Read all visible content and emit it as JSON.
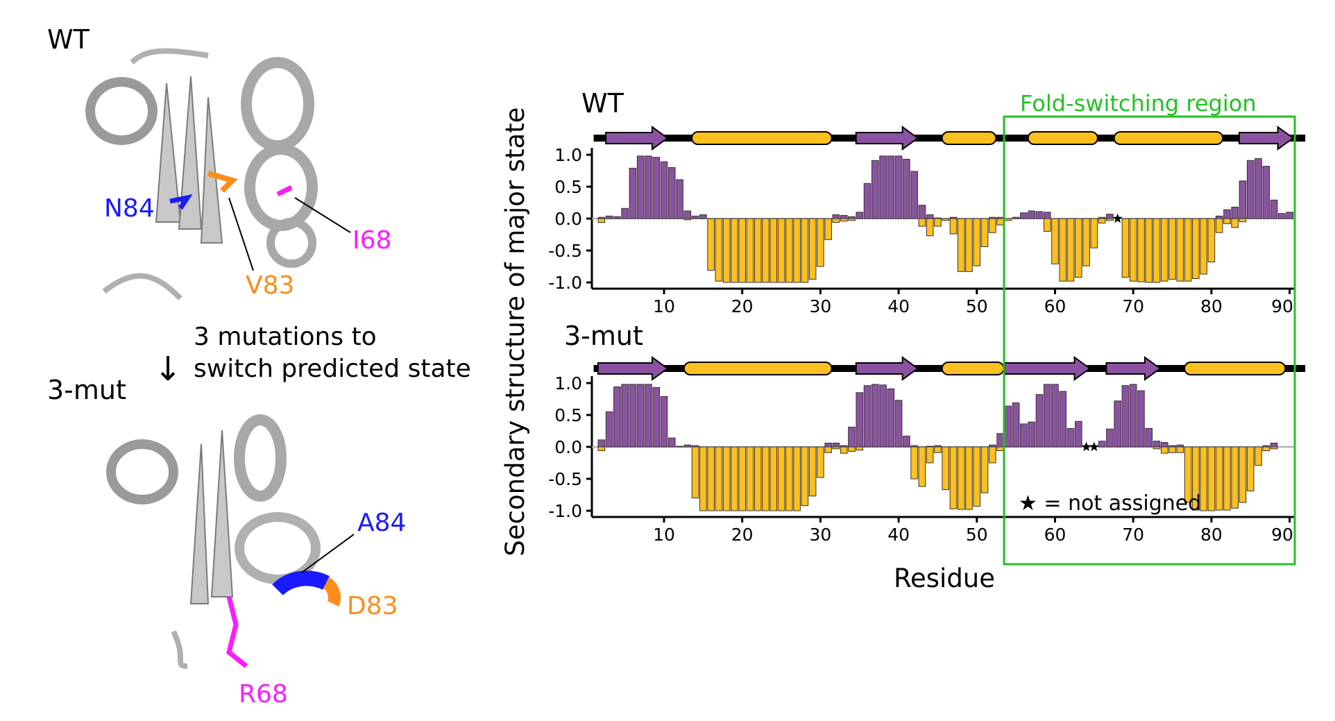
{
  "left": {
    "wt_label": "WT",
    "mut_label": "3-mut",
    "arrow_text_line1": "3 mutations to",
    "arrow_text_line2": "switch predicted state",
    "wt_residues": [
      {
        "label": "N84",
        "color": "#1a1aff"
      },
      {
        "label": "V83",
        "color": "#ff8c1a"
      },
      {
        "label": "I68",
        "color": "#ff1aff"
      }
    ],
    "mut_residues": [
      {
        "label": "A84",
        "color": "#1a1aff"
      },
      {
        "label": "D83",
        "color": "#ff8c1a"
      },
      {
        "label": "R68",
        "color": "#ff1aff"
      }
    ]
  },
  "chart_data": {
    "type": "bar",
    "ylabel": "Secondary structure of major state",
    "xlabel": "Residue",
    "xticks": [
      10,
      20,
      30,
      40,
      50,
      60,
      70,
      80,
      90
    ],
    "yticks": [
      "1.0",
      "0.5",
      "0.0",
      "-0.5",
      "-1.0"
    ],
    "ylim": [
      -1.0,
      1.0
    ],
    "xlim": [
      1,
      92
    ],
    "colors": {
      "strand": "#8B52A1",
      "helix": "#FDC01F",
      "region_box": "#22c222"
    },
    "region": {
      "label": "Fold-switching region",
      "start": 54,
      "end": 92
    },
    "note": "★ = not assigned",
    "panels": [
      {
        "title": "WT",
        "start_residue": 2,
        "strand": [
          0.02,
          0.04,
          0.03,
          0.16,
          0.79,
          0.98,
          0.98,
          0.96,
          0.89,
          0.8,
          0.61,
          0.12,
          0.04,
          0.06,
          0,
          0,
          0,
          0,
          0,
          0,
          0,
          0,
          0,
          0,
          0,
          0,
          0,
          0,
          0,
          0,
          0.06,
          0.05,
          0.03,
          0.1,
          0.55,
          0.91,
          0.98,
          0.98,
          0.98,
          0.93,
          0.74,
          0.21,
          0.06,
          0.01,
          0,
          0.02,
          0,
          0,
          0,
          0,
          0.02,
          0.02,
          0,
          0.02,
          0.09,
          0.12,
          0.11,
          0.1,
          0,
          0,
          0,
          0,
          0,
          0,
          0.02,
          0.07,
          null,
          0,
          0,
          0,
          0,
          0,
          0,
          0,
          0,
          0,
          0,
          0,
          0,
          0.04,
          0.14,
          0.18,
          0.59,
          0.91,
          0.94,
          0.82,
          0.29,
          0.08,
          0.1
        ],
        "helix": [
          -0.06,
          0,
          0,
          0,
          0,
          0,
          0,
          0,
          0,
          0,
          0,
          -0.02,
          0,
          0,
          -0.81,
          -0.98,
          -1,
          -1,
          -1,
          -1,
          -1,
          -1,
          -1,
          -1,
          -1,
          -1,
          -1,
          -0.95,
          -0.75,
          -0.33,
          -0.06,
          -0.04,
          -0.03,
          0,
          0,
          0,
          0,
          0,
          0,
          0,
          0,
          -0.12,
          -0.27,
          -0.12,
          -0.03,
          -0.24,
          -0.83,
          -0.83,
          -0.74,
          -0.44,
          -0.22,
          -0.1,
          -0.03,
          0,
          0,
          0,
          0,
          -0.2,
          -0.71,
          -0.98,
          -0.98,
          -0.92,
          -0.74,
          -0.46,
          -0.07,
          -0.03,
          null,
          -0.92,
          -0.98,
          -0.99,
          -1,
          -1,
          -0.98,
          -0.95,
          -0.98,
          -0.98,
          -0.94,
          -0.87,
          -0.68,
          -0.22,
          -0.08,
          -0.14,
          -0.05,
          0,
          0,
          0,
          0,
          0,
          0,
          -0.1
        ],
        "track": [
          {
            "type": "strand",
            "start": 3,
            "end": 10
          },
          {
            "type": "helix",
            "start": 14,
            "end": 31
          },
          {
            "type": "strand",
            "start": 35,
            "end": 42
          },
          {
            "type": "helix",
            "start": 46,
            "end": 52
          },
          {
            "type": "helix",
            "start": 57,
            "end": 65
          },
          {
            "type": "helix",
            "start": 68,
            "end": 81
          },
          {
            "type": "strand",
            "start": 84,
            "end": 90
          }
        ]
      },
      {
        "title": "3-mut",
        "start_residue": 2,
        "strand": [
          0.11,
          0.55,
          0.94,
          0.98,
          0.98,
          0.98,
          0.98,
          0.93,
          0.79,
          0.14,
          0.01,
          0.03,
          0.02,
          0,
          0,
          0,
          0,
          0,
          0,
          0,
          0,
          0,
          0,
          0,
          0,
          0,
          0,
          0,
          0,
          0.06,
          0.06,
          0.02,
          0.31,
          0.85,
          0.96,
          0.98,
          0.97,
          0.91,
          0.73,
          0.17,
          0.02,
          0,
          0.01,
          0.02,
          0,
          0,
          0,
          0,
          0,
          0,
          0.03,
          0.21,
          0.64,
          0.69,
          0.36,
          0.39,
          0.82,
          0.98,
          0.98,
          0.87,
          0.29,
          0.4,
          null,
          null,
          0.09,
          0.28,
          0.72,
          0.96,
          0.98,
          0.88,
          0.29,
          0.09,
          0.07,
          0.02,
          0.03,
          0,
          0,
          0,
          0,
          0,
          0,
          0,
          0,
          0,
          0,
          0.02,
          0.06
        ],
        "helix": [
          -0.06,
          0,
          0,
          0,
          0,
          0,
          0,
          0,
          0,
          0,
          0,
          0,
          -0.8,
          -1,
          -1,
          -1,
          -1,
          -1,
          -1,
          -1,
          -1,
          -1,
          -1,
          -1,
          -1,
          -1,
          -0.92,
          -0.77,
          -0.48,
          -0.09,
          -0.03,
          -0.1,
          -0.07,
          -0.05,
          0,
          0,
          0,
          0,
          0,
          0,
          -0.5,
          -0.62,
          -0.25,
          -0.09,
          -0.67,
          -0.97,
          -0.98,
          -0.98,
          -0.93,
          -0.72,
          -0.25,
          -0.06,
          0,
          0,
          0,
          0,
          0,
          0,
          0,
          0,
          0,
          0,
          null,
          null,
          0,
          0,
          0,
          0,
          0,
          0,
          0,
          -0.03,
          -0.1,
          -0.09,
          -0.09,
          -0.87,
          -0.99,
          -1,
          -1,
          -0.99,
          -0.99,
          -0.96,
          -0.87,
          -0.69,
          -0.29,
          -0.06,
          -0.03
        ],
        "track": [
          {
            "type": "strand",
            "start": 2,
            "end": 10
          },
          {
            "type": "helix",
            "start": 13,
            "end": 31
          },
          {
            "type": "strand",
            "start": 35,
            "end": 42
          },
          {
            "type": "helix",
            "start": 46,
            "end": 53
          },
          {
            "type": "strand",
            "start": 54,
            "end": 64
          },
          {
            "type": "strand",
            "start": 67,
            "end": 73
          },
          {
            "type": "helix",
            "start": 77,
            "end": 89
          }
        ]
      }
    ]
  }
}
